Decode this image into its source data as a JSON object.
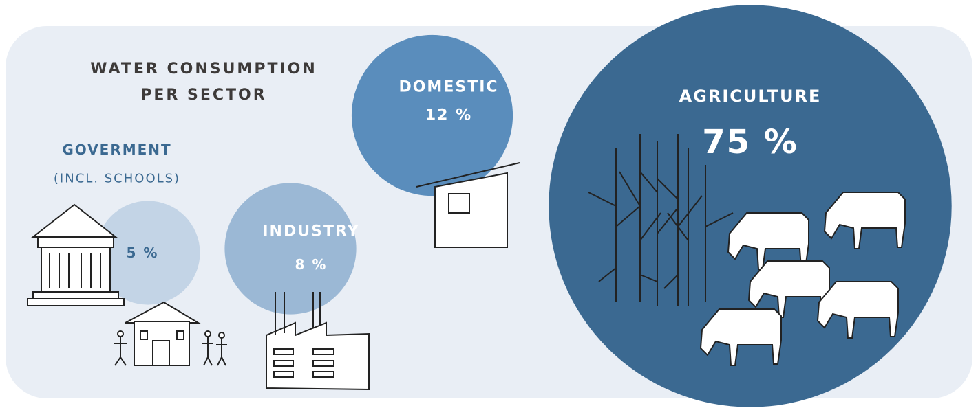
{
  "chart_data": {
    "type": "bubble",
    "title": "WATER CONSUMPTION PER SECTOR",
    "categories": [
      "GOVERMENT",
      "INDUSTRY",
      "DOMESTIC",
      "AGRICULTURE"
    ],
    "annotations": [
      "(INCL. SCHOOLS)"
    ],
    "values": [
      5,
      8,
      12,
      75
    ],
    "value_labels": [
      "5 %",
      "8 %",
      "12 %",
      "75 %"
    ],
    "colors": [
      "#c3d4e6",
      "#9bb8d5",
      "#5a8dbc",
      "#3b6991"
    ]
  }
}
